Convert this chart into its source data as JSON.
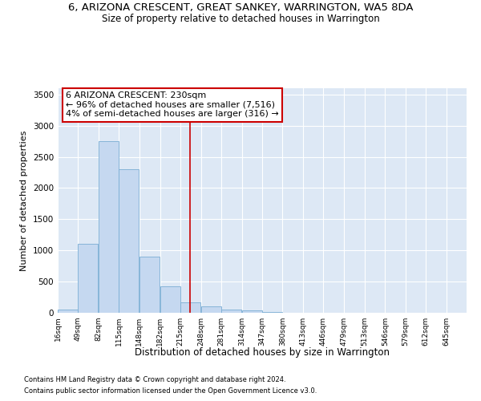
{
  "title": "6, ARIZONA CRESCENT, GREAT SANKEY, WARRINGTON, WA5 8DA",
  "subtitle": "Size of property relative to detached houses in Warrington",
  "xlabel": "Distribution of detached houses by size in Warrington",
  "ylabel": "Number of detached properties",
  "footnote1": "Contains HM Land Registry data © Crown copyright and database right 2024.",
  "footnote2": "Contains public sector information licensed under the Open Government Licence v3.0.",
  "annotation_title": "6 ARIZONA CRESCENT: 230sqm",
  "annotation_line1": "← 96% of detached houses are smaller (7,516)",
  "annotation_line2": "4% of semi-detached houses are larger (316) →",
  "vline_x": 230,
  "bar_color": "#c5d8f0",
  "bar_edge_color": "#7aadd4",
  "vline_color": "#cc0000",
  "annotation_box_color": "#cc0000",
  "background_color": "#dde8f5",
  "bin_edges": [
    16,
    49,
    82,
    115,
    148,
    182,
    215,
    248,
    281,
    314,
    347,
    380,
    413,
    446,
    479,
    513,
    546,
    579,
    612,
    645,
    678
  ],
  "bin_counts": [
    50,
    1100,
    2750,
    2300,
    900,
    430,
    170,
    100,
    55,
    35,
    10,
    5,
    5,
    0,
    0,
    0,
    0,
    0,
    0,
    0
  ],
  "ylim": [
    0,
    3600
  ],
  "yticks": [
    0,
    500,
    1000,
    1500,
    2000,
    2500,
    3000,
    3500
  ]
}
